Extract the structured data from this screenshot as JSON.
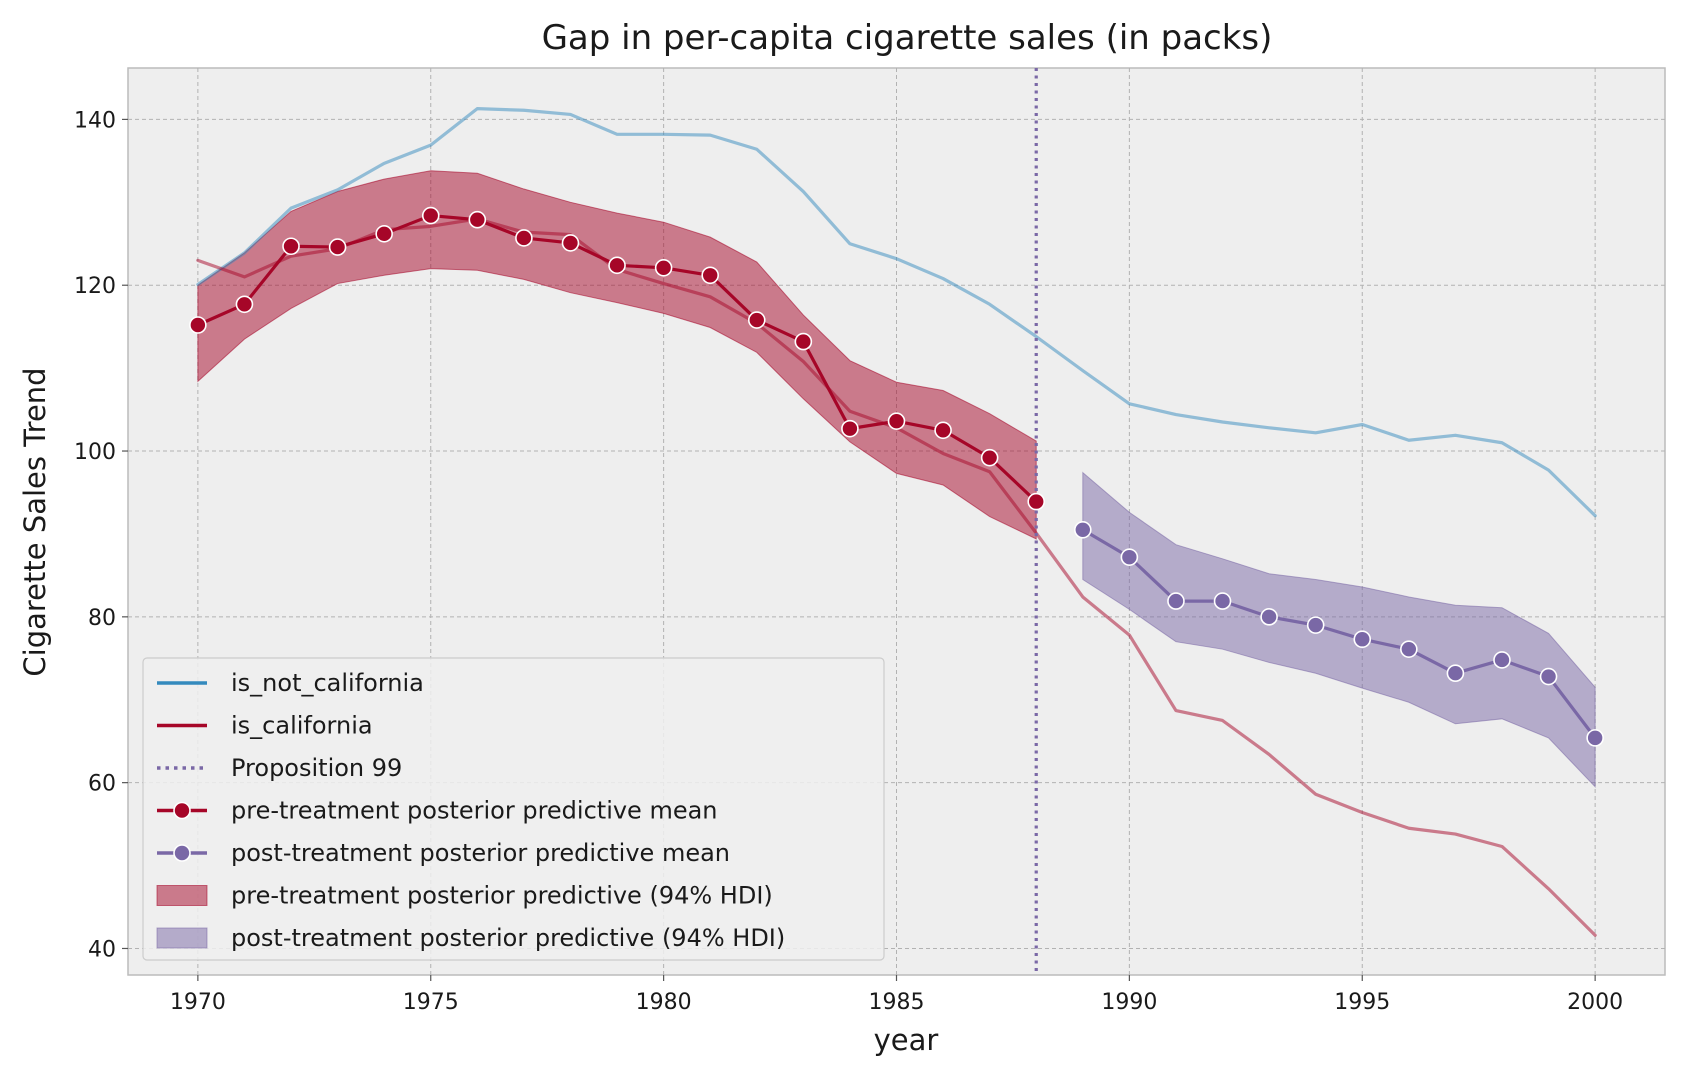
{
  "chart_data": {
    "type": "line",
    "title": "Gap in per-capita cigarette sales (in packs)",
    "xlabel": "year",
    "ylabel": "Cigarette Sales Trend",
    "xlim": [
      1968.5,
      2001.5
    ],
    "ylim": [
      36.8,
      146.2
    ],
    "xticks": [
      1970,
      1975,
      1980,
      1985,
      1990,
      1995,
      2000
    ],
    "yticks": [
      40,
      60,
      80,
      100,
      120,
      140
    ],
    "grid": true,
    "legend_position": "lower-left",
    "intervention": {
      "name": "Proposition 99",
      "x": 1988,
      "color": "#7a68a6"
    },
    "series": [
      {
        "name": "is_not_california",
        "color": "#348abd",
        "x": [
          1970,
          1971,
          1972,
          1973,
          1974,
          1975,
          1976,
          1977,
          1978,
          1979,
          1980,
          1981,
          1982,
          1983,
          1984,
          1985,
          1986,
          1987,
          1988,
          1989,
          1990,
          1991,
          1992,
          1993,
          1994,
          1995,
          1996,
          1997,
          1998,
          1999,
          2000
        ],
        "values": [
          120.1,
          123.9,
          129.3,
          131.5,
          134.7,
          136.9,
          141.3,
          141.1,
          140.6,
          138.2,
          138.2,
          138.1,
          136.4,
          131.3,
          125.0,
          123.2,
          120.8,
          117.7,
          113.8,
          109.7,
          105.7,
          104.4,
          103.5,
          102.8,
          102.2,
          103.2,
          101.3,
          101.9,
          101.0,
          97.7,
          92.2
        ]
      },
      {
        "name": "is_california",
        "color": "#a60628",
        "x": [
          1970,
          1971,
          1972,
          1973,
          1974,
          1975,
          1976,
          1977,
          1978,
          1979,
          1980,
          1981,
          1982,
          1983,
          1984,
          1985,
          1986,
          1987,
          1988,
          1989,
          1990,
          1991,
          1992,
          1993,
          1994,
          1995,
          1996,
          1997,
          1998,
          1999,
          2000
        ],
        "values": [
          123.0,
          121.0,
          123.5,
          124.4,
          126.7,
          127.1,
          128.0,
          126.4,
          126.1,
          121.9,
          120.2,
          118.6,
          115.4,
          110.8,
          104.8,
          102.8,
          99.7,
          97.5,
          90.1,
          82.4,
          77.8,
          68.7,
          67.5,
          63.4,
          58.6,
          56.4,
          54.5,
          53.8,
          52.3,
          47.2,
          41.6
        ]
      },
      {
        "name": "pre-treatment posterior predictive mean",
        "color": "#a60628",
        "markers": true,
        "x": [
          1970,
          1971,
          1972,
          1973,
          1974,
          1975,
          1976,
          1977,
          1978,
          1979,
          1980,
          1981,
          1982,
          1983,
          1984,
          1985,
          1986,
          1987,
          1988
        ],
        "values": [
          115.2,
          117.7,
          124.7,
          124.6,
          126.2,
          128.4,
          127.9,
          125.7,
          125.1,
          122.4,
          122.1,
          121.2,
          115.8,
          113.2,
          102.7,
          103.6,
          102.5,
          99.2,
          93.9
        ]
      },
      {
        "name": "post-treatment posterior predictive mean",
        "color": "#7a68a6",
        "markers": true,
        "x": [
          1989,
          1990,
          1991,
          1992,
          1993,
          1994,
          1995,
          1996,
          1997,
          1998,
          1999,
          2000
        ],
        "values": [
          90.5,
          87.2,
          81.9,
          81.9,
          80.0,
          79.0,
          77.3,
          76.1,
          73.2,
          74.8,
          72.8,
          65.4
        ]
      }
    ],
    "bands": [
      {
        "name": "pre-treatment posterior predictive (94% HDI)",
        "color": "#a60628",
        "x": [
          1970,
          1971,
          1972,
          1973,
          1974,
          1975,
          1976,
          1977,
          1978,
          1979,
          1980,
          1981,
          1982,
          1983,
          1984,
          1985,
          1986,
          1987,
          1988
        ],
        "lower": [
          108.4,
          113.5,
          117.2,
          120.2,
          121.2,
          122.0,
          121.8,
          120.7,
          119.1,
          117.9,
          116.6,
          114.9,
          111.9,
          106.3,
          101.1,
          97.3,
          95.9,
          92.1,
          89.4
        ],
        "upper": [
          120.0,
          123.9,
          128.9,
          131.3,
          132.8,
          133.8,
          133.5,
          131.6,
          130.0,
          128.7,
          127.6,
          125.8,
          122.8,
          116.4,
          110.9,
          108.3,
          107.3,
          104.5,
          101.2
        ]
      },
      {
        "name": "post-treatment posterior predictive (94% HDI)",
        "color": "#7a68a6",
        "x": [
          1989,
          1990,
          1991,
          1992,
          1993,
          1994,
          1995,
          1996,
          1997,
          1998,
          1999,
          2000
        ],
        "lower": [
          84.5,
          80.9,
          77.0,
          76.1,
          74.5,
          73.2,
          71.4,
          69.7,
          67.1,
          67.7,
          65.4,
          59.5
        ],
        "upper": [
          97.4,
          92.6,
          88.7,
          87.0,
          85.2,
          84.5,
          83.6,
          82.4,
          81.4,
          81.1,
          78.0,
          71.5
        ]
      }
    ],
    "legend": [
      {
        "label": "is_not_california",
        "kind": "line",
        "color": "#348abd"
      },
      {
        "label": "is_california",
        "kind": "line",
        "color": "#a60628"
      },
      {
        "label": "Proposition 99",
        "kind": "dotted",
        "color": "#7a68a6"
      },
      {
        "label": "pre-treatment posterior predictive mean",
        "kind": "line-marker",
        "color": "#a60628"
      },
      {
        "label": "post-treatment posterior predictive mean",
        "kind": "line-marker",
        "color": "#7a68a6"
      },
      {
        "label": "pre-treatment posterior predictive (94% HDI)",
        "kind": "patch",
        "color": "#a60628"
      },
      {
        "label": "post-treatment posterior predictive (94% HDI)",
        "kind": "patch",
        "color": "#7a68a6"
      }
    ]
  }
}
